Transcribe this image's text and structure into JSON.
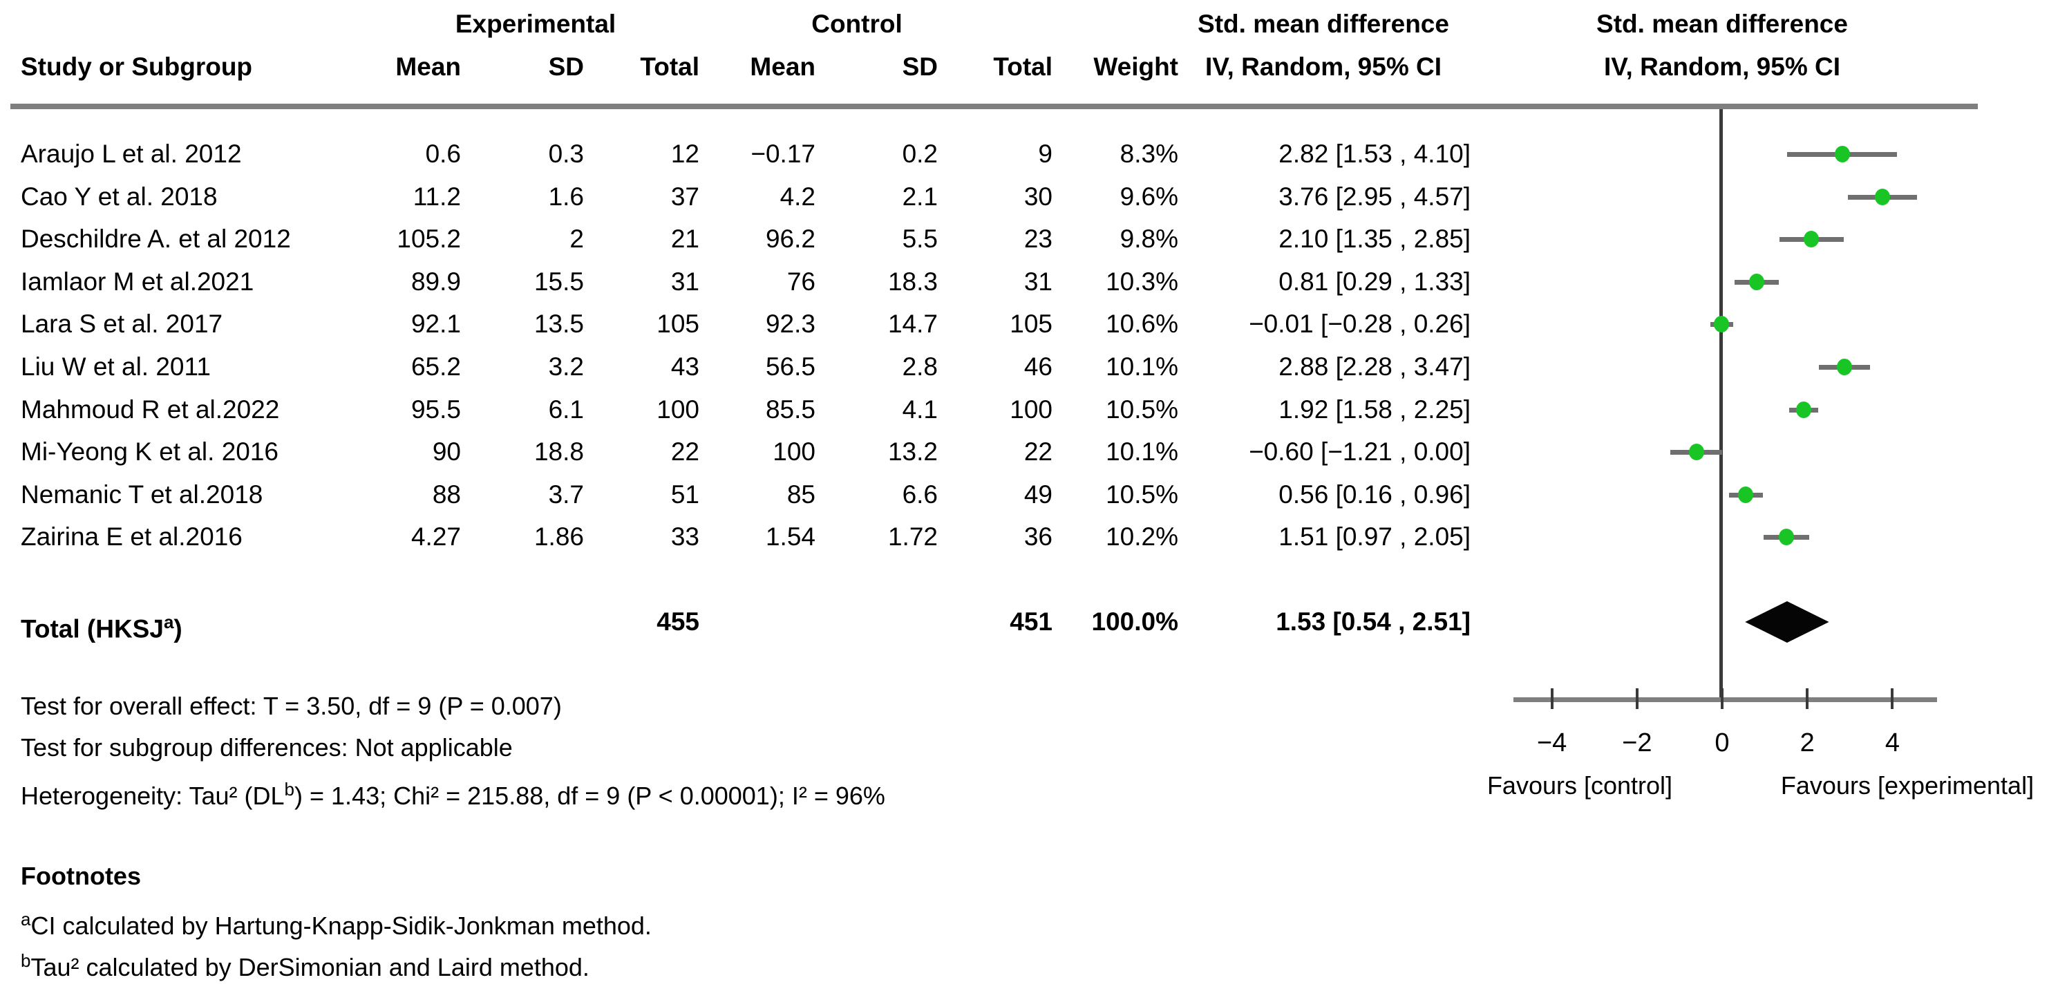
{
  "header": {
    "group_experimental": "Experimental",
    "group_control": "Control",
    "study": "Study or Subgroup",
    "cols": {
      "mean1": "Mean",
      "sd1": "SD",
      "total1": "Total",
      "mean2": "Mean",
      "sd2": "SD",
      "total2": "Total",
      "weight": "Weight"
    },
    "smd_text": {
      "line1": "Std. mean difference",
      "line2": "IV, Random, 95% CI"
    },
    "smd_plot": {
      "line1": "Std. mean difference",
      "line2": "IV, Random, 95% CI"
    }
  },
  "rows": [
    {
      "study": "Araujo L et al. 2012",
      "exp_mean": "0.6",
      "exp_sd": "0.3",
      "exp_total": "12",
      "ctrl_mean": "−0.17",
      "ctrl_sd": "0.2",
      "ctrl_total": "9",
      "weight": "8.3%",
      "ci_text": "2.82 [1.53 , 4.10]",
      "smd": 2.82,
      "lo": 1.53,
      "hi": 4.1
    },
    {
      "study": "Cao Y et al. 2018",
      "exp_mean": "11.2",
      "exp_sd": "1.6",
      "exp_total": "37",
      "ctrl_mean": "4.2",
      "ctrl_sd": "2.1",
      "ctrl_total": "30",
      "weight": "9.6%",
      "ci_text": "3.76 [2.95 , 4.57]",
      "smd": 3.76,
      "lo": 2.95,
      "hi": 4.57
    },
    {
      "study": "Deschildre A. et al 2012",
      "exp_mean": "105.2",
      "exp_sd": "2",
      "exp_total": "21",
      "ctrl_mean": "96.2",
      "ctrl_sd": "5.5",
      "ctrl_total": "23",
      "weight": "9.8%",
      "ci_text": "2.10 [1.35 , 2.85]",
      "smd": 2.1,
      "lo": 1.35,
      "hi": 2.85
    },
    {
      "study": "Iamlaor M et al.2021",
      "exp_mean": "89.9",
      "exp_sd": "15.5",
      "exp_total": "31",
      "ctrl_mean": "76",
      "ctrl_sd": "18.3",
      "ctrl_total": "31",
      "weight": "10.3%",
      "ci_text": "0.81 [0.29 , 1.33]",
      "smd": 0.81,
      "lo": 0.29,
      "hi": 1.33
    },
    {
      "study": "Lara S et al. 2017",
      "exp_mean": "92.1",
      "exp_sd": "13.5",
      "exp_total": "105",
      "ctrl_mean": "92.3",
      "ctrl_sd": "14.7",
      "ctrl_total": "105",
      "weight": "10.6%",
      "ci_text": "−0.01 [−0.28 , 0.26]",
      "smd": -0.01,
      "lo": -0.28,
      "hi": 0.26
    },
    {
      "study": "Liu W et al. 2011",
      "exp_mean": "65.2",
      "exp_sd": "3.2",
      "exp_total": "43",
      "ctrl_mean": "56.5",
      "ctrl_sd": "2.8",
      "ctrl_total": "46",
      "weight": "10.1%",
      "ci_text": "2.88 [2.28 , 3.47]",
      "smd": 2.88,
      "lo": 2.28,
      "hi": 3.47
    },
    {
      "study": "Mahmoud R et al.2022",
      "exp_mean": "95.5",
      "exp_sd": "6.1",
      "exp_total": "100",
      "ctrl_mean": "85.5",
      "ctrl_sd": "4.1",
      "ctrl_total": "100",
      "weight": "10.5%",
      "ci_text": "1.92 [1.58 , 2.25]",
      "smd": 1.92,
      "lo": 1.58,
      "hi": 2.25
    },
    {
      "study": "Mi-Yeong K et al. 2016",
      "exp_mean": "90",
      "exp_sd": "18.8",
      "exp_total": "22",
      "ctrl_mean": "100",
      "ctrl_sd": "13.2",
      "ctrl_total": "22",
      "weight": "10.1%",
      "ci_text": "−0.60 [−1.21 , 0.00]",
      "smd": -0.6,
      "lo": -1.21,
      "hi": 0.0
    },
    {
      "study": "Nemanic T et al.2018",
      "exp_mean": "88",
      "exp_sd": "3.7",
      "exp_total": "51",
      "ctrl_mean": "85",
      "ctrl_sd": "6.6",
      "ctrl_total": "49",
      "weight": "10.5%",
      "ci_text": "0.56 [0.16 , 0.96]",
      "smd": 0.56,
      "lo": 0.16,
      "hi": 0.96
    },
    {
      "study": "Zairina E et al.2016",
      "exp_mean": "4.27",
      "exp_sd": "1.86",
      "exp_total": "33",
      "ctrl_mean": "1.54",
      "ctrl_sd": "1.72",
      "ctrl_total": "36",
      "weight": "10.2%",
      "ci_text": "1.51 [0.97 , 2.05]",
      "smd": 1.51,
      "lo": 0.97,
      "hi": 2.05
    }
  ],
  "total_row": {
    "label_main": "Total (HKSJ",
    "label_sup": "a",
    "label_close": ")",
    "exp_total": "455",
    "ctrl_total": "451",
    "weight": "100.0%",
    "ci_text": "1.53 [0.54 , 2.51]",
    "smd": 1.53,
    "lo": 0.54,
    "hi": 2.51
  },
  "axis": {
    "tick_labels": [
      "−4",
      "−2",
      "0",
      "2",
      "4"
    ],
    "tick_values": [
      -4,
      -2,
      0,
      2,
      4
    ],
    "favours_left": "Favours [control]",
    "favours_right": "Favours [experimental]"
  },
  "stats": {
    "overall": "Test for overall effect: T = 3.50, df = 9 (P = 0.007)",
    "subgroup": "Test for subgroup differences: Not applicable",
    "het_prefix": "Heterogeneity: Tau² (DL",
    "het_sup": "b",
    "het_suffix": ") = 1.43; Chi² = 215.88, df = 9 (P < 0.00001); I² = 96%"
  },
  "footnotes": {
    "title": "Footnotes",
    "a_sup": "a",
    "a_text": "CI calculated by Hartung-Knapp-Sidik-Jonkman method.",
    "b_sup": "b",
    "b_text": "Tau² calculated by DerSimonian and Laird method."
  },
  "colors": {
    "marker_green": "#18C525",
    "ci_line": "#6f6f6f",
    "rule_gray": "#7f7f7f",
    "zero_line": "#3a3a3a",
    "diamond": "#050505",
    "text": "#000000"
  },
  "chart_data": {
    "type": "forest",
    "title": "Std. mean difference IV, Random, 95% CI",
    "xlim": [
      -5,
      5
    ],
    "xticks": [
      -4,
      -2,
      0,
      2,
      4
    ],
    "xlabel_left": "Favours [control]",
    "xlabel_right": "Favours [experimental]",
    "grid": false,
    "studies": [
      {
        "name": "Araujo L et al. 2012",
        "smd": 2.82,
        "ci": [
          1.53,
          4.1
        ],
        "weight_pct": 8.3,
        "exp": {
          "mean": 0.6,
          "sd": 0.3,
          "n": 12
        },
        "ctrl": {
          "mean": -0.17,
          "sd": 0.2,
          "n": 9
        }
      },
      {
        "name": "Cao Y et al. 2018",
        "smd": 3.76,
        "ci": [
          2.95,
          4.57
        ],
        "weight_pct": 9.6,
        "exp": {
          "mean": 11.2,
          "sd": 1.6,
          "n": 37
        },
        "ctrl": {
          "mean": 4.2,
          "sd": 2.1,
          "n": 30
        }
      },
      {
        "name": "Deschildre A. et al 2012",
        "smd": 2.1,
        "ci": [
          1.35,
          2.85
        ],
        "weight_pct": 9.8,
        "exp": {
          "mean": 105.2,
          "sd": 2,
          "n": 21
        },
        "ctrl": {
          "mean": 96.2,
          "sd": 5.5,
          "n": 23
        }
      },
      {
        "name": "Iamlaor M et al.2021",
        "smd": 0.81,
        "ci": [
          0.29,
          1.33
        ],
        "weight_pct": 10.3,
        "exp": {
          "mean": 89.9,
          "sd": 15.5,
          "n": 31
        },
        "ctrl": {
          "mean": 76,
          "sd": 18.3,
          "n": 31
        }
      },
      {
        "name": "Lara S et al. 2017",
        "smd": -0.01,
        "ci": [
          -0.28,
          0.26
        ],
        "weight_pct": 10.6,
        "exp": {
          "mean": 92.1,
          "sd": 13.5,
          "n": 105
        },
        "ctrl": {
          "mean": 92.3,
          "sd": 14.7,
          "n": 105
        }
      },
      {
        "name": "Liu W et al. 2011",
        "smd": 2.88,
        "ci": [
          2.28,
          3.47
        ],
        "weight_pct": 10.1,
        "exp": {
          "mean": 65.2,
          "sd": 3.2,
          "n": 43
        },
        "ctrl": {
          "mean": 56.5,
          "sd": 2.8,
          "n": 46
        }
      },
      {
        "name": "Mahmoud R et al.2022",
        "smd": 1.92,
        "ci": [
          1.58,
          2.25
        ],
        "weight_pct": 10.5,
        "exp": {
          "mean": 95.5,
          "sd": 6.1,
          "n": 100
        },
        "ctrl": {
          "mean": 85.5,
          "sd": 4.1,
          "n": 100
        }
      },
      {
        "name": "Mi-Yeong K et al. 2016",
        "smd": -0.6,
        "ci": [
          -1.21,
          0.0
        ],
        "weight_pct": 10.1,
        "exp": {
          "mean": 90,
          "sd": 18.8,
          "n": 22
        },
        "ctrl": {
          "mean": 100,
          "sd": 13.2,
          "n": 22
        }
      },
      {
        "name": "Nemanic T et al.2018",
        "smd": 0.56,
        "ci": [
          0.16,
          0.96
        ],
        "weight_pct": 10.5,
        "exp": {
          "mean": 88,
          "sd": 3.7,
          "n": 51
        },
        "ctrl": {
          "mean": 85,
          "sd": 6.6,
          "n": 49
        }
      },
      {
        "name": "Zairina E et al.2016",
        "smd": 1.51,
        "ci": [
          0.97,
          2.05
        ],
        "weight_pct": 10.2,
        "exp": {
          "mean": 4.27,
          "sd": 1.86,
          "n": 33
        },
        "ctrl": {
          "mean": 1.54,
          "sd": 1.72,
          "n": 36
        }
      }
    ],
    "total": {
      "name": "Total (HKSJa)",
      "smd": 1.53,
      "ci": [
        0.54,
        2.51
      ],
      "weight_pct": 100.0,
      "exp_n": 455,
      "ctrl_n": 451
    }
  }
}
